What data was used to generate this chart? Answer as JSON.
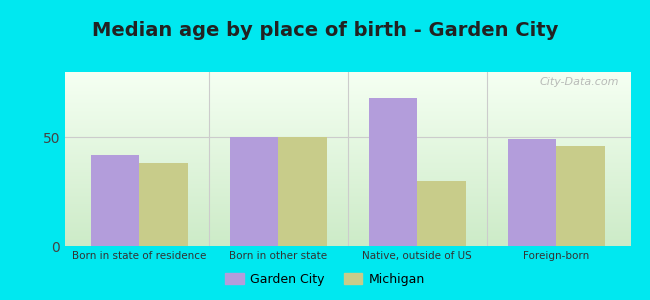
{
  "title": "Median age by place of birth - Garden City",
  "categories": [
    "Born in state of residence",
    "Born in other state",
    "Native, outside of US",
    "Foreign-born"
  ],
  "garden_city_values": [
    42,
    50,
    68,
    49
  ],
  "michigan_values": [
    38,
    50,
    30,
    46
  ],
  "bar_color_gc": "#b39ddb",
  "bar_color_mi": "#c8cc8a",
  "yticks": [
    0,
    50
  ],
  "ylim": [
    0,
    80
  ],
  "bg_outer": "#00e8f0",
  "legend_gc": "Garden City",
  "legend_mi": "Michigan",
  "title_fontsize": 14,
  "bar_width": 0.35,
  "watermark": "City-Data.com"
}
